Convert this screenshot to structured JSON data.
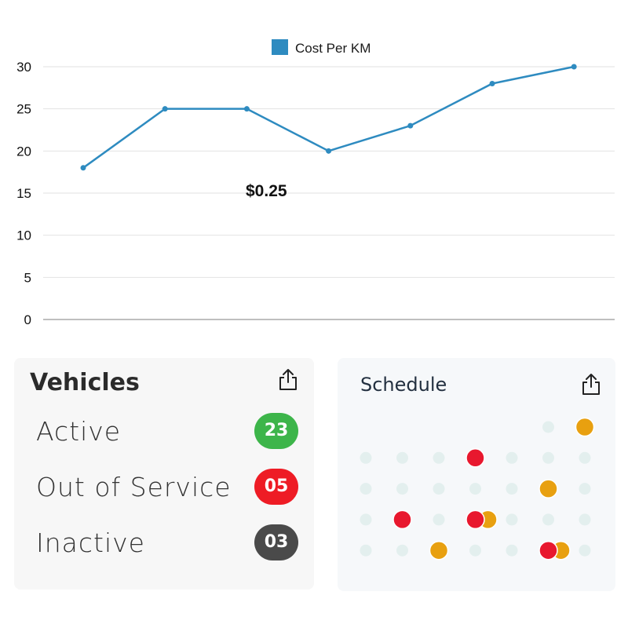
{
  "chart_data": {
    "type": "line",
    "categories": [
      "",
      "",
      "",
      "",
      "",
      "",
      ""
    ],
    "series": [
      {
        "name": "Cost Per KM",
        "values": [
          18,
          25,
          25,
          20,
          23,
          28,
          30
        ]
      }
    ],
    "yticks": [
      0,
      5,
      10,
      15,
      20,
      25,
      30
    ],
    "ylim": [
      0,
      30
    ],
    "title": "",
    "xlabel": "",
    "ylabel": "",
    "annotation": "$0.25",
    "legend_position": "top-center",
    "grid": true,
    "colors": {
      "line": "#2e8bc0",
      "grid": "#e2e2e2",
      "axis": "#999999"
    }
  },
  "vehicles": {
    "title": "Vehicles",
    "share_icon": "share-icon",
    "items": [
      {
        "label": "Active",
        "count": "23",
        "color": "#3db54a"
      },
      {
        "label": "Out of Service",
        "count": "05",
        "color": "#ee1c25"
      },
      {
        "label": "Inactive",
        "count": "03",
        "color": "#4a4a4a"
      }
    ]
  },
  "schedule": {
    "title": "Schedule",
    "share_icon": "share-icon",
    "colors": {
      "empty": "#e3efee",
      "red": "#e8182e",
      "orange": "#e8a010"
    },
    "rows": [
      [
        "",
        "",
        "",
        "",
        "",
        "empty",
        "orange"
      ],
      [
        "empty",
        "empty",
        "empty",
        "red",
        "empty",
        "empty",
        "empty"
      ],
      [
        "empty",
        "empty",
        "empty",
        "empty",
        "empty",
        "orange",
        "empty"
      ],
      [
        "empty",
        "red",
        "empty",
        "red+orange",
        "empty",
        "empty",
        "empty"
      ],
      [
        "empty",
        "empty",
        "orange",
        "empty",
        "empty",
        "red+orange",
        "empty"
      ]
    ]
  }
}
